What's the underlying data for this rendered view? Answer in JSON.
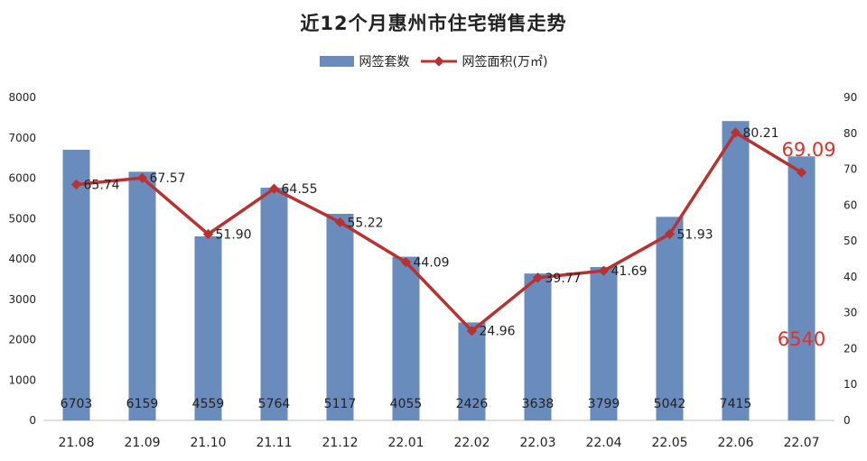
{
  "chart_data": {
    "type": "bar",
    "title": "近12个月惠州市住宅销售走势",
    "categories": [
      "21.08",
      "21.09",
      "21.10",
      "21.11",
      "21.12",
      "22.01",
      "22.02",
      "22.03",
      "22.04",
      "22.05",
      "22.06",
      "22.07"
    ],
    "series": [
      {
        "name": "网签套数",
        "type": "bar",
        "axis": "left",
        "color": "#6a8cbd",
        "values": [
          6703,
          6159,
          4559,
          5764,
          5117,
          4055,
          2426,
          3638,
          3799,
          5042,
          7415,
          6540
        ]
      },
      {
        "name": "网签面积(万㎡)",
        "type": "line",
        "axis": "right",
        "color": "#b83232",
        "values": [
          65.74,
          67.57,
          51.9,
          64.55,
          55.22,
          44.09,
          24.96,
          39.77,
          41.69,
          51.93,
          80.21,
          69.09
        ]
      }
    ],
    "bar_value_labels": [
      "6703",
      "6159",
      "4559",
      "5764",
      "5117",
      "4055",
      "2426",
      "3638",
      "3799",
      "5042",
      "7415",
      "6540"
    ],
    "line_value_labels": [
      "65.74",
      "67.57",
      "51.90",
      "64.55",
      "55.22",
      "44.09",
      "24.96",
      "39.77",
      "41.69",
      "51.93",
      "80.21",
      "69.09"
    ],
    "y_left": {
      "min": 0,
      "max": 8000,
      "step": 1000,
      "ticks": [
        "0",
        "1000",
        "2000",
        "3000",
        "4000",
        "5000",
        "6000",
        "7000",
        "8000"
      ]
    },
    "y_right": {
      "min": 0,
      "max": 90,
      "step": 10,
      "ticks": [
        "0",
        "10",
        "20",
        "30",
        "40",
        "50",
        "60",
        "70",
        "80",
        "90"
      ]
    },
    "grid": false,
    "legend_position": "top-center",
    "highlight_last": true,
    "highlight_color": "#d9342b"
  }
}
